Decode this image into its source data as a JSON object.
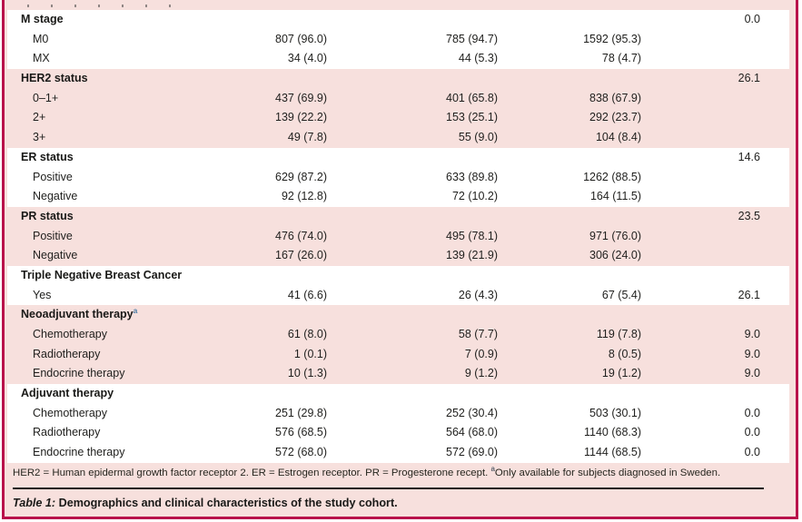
{
  "colors": {
    "frame_red": "#b9124b",
    "band_pink": "#f7e0dd",
    "band_white": "#ffffff",
    "rule_black": "#1a1a1a",
    "superscript_blue": "#4d7ea6"
  },
  "table": {
    "groups": [
      {
        "label": "M stage",
        "sup": "",
        "missing": "0.0",
        "rows": [
          {
            "label": "M0",
            "values": [
              "807 (96.0)",
              "785 (94.7)",
              "1592 (95.3)"
            ],
            "missing": ""
          },
          {
            "label": "MX",
            "values": [
              "34 (4.0)",
              "44 (5.3)",
              "78 (4.7)"
            ],
            "missing": ""
          }
        ]
      },
      {
        "label": "HER2 status",
        "sup": "",
        "missing": "26.1",
        "rows": [
          {
            "label": "0–1+",
            "values": [
              "437 (69.9)",
              "401 (65.8)",
              "838 (67.9)"
            ],
            "missing": ""
          },
          {
            "label": "2+",
            "values": [
              "139 (22.2)",
              "153 (25.1)",
              "292 (23.7)"
            ],
            "missing": ""
          },
          {
            "label": "3+",
            "values": [
              "49 (7.8)",
              "55 (9.0)",
              "104 (8.4)"
            ],
            "missing": ""
          }
        ]
      },
      {
        "label": "ER status",
        "sup": "",
        "missing": "14.6",
        "rows": [
          {
            "label": "Positive",
            "values": [
              "629 (87.2)",
              "633 (89.8)",
              "1262 (88.5)"
            ],
            "missing": ""
          },
          {
            "label": "Negative",
            "values": [
              "92 (12.8)",
              "72 (10.2)",
              "164 (11.5)"
            ],
            "missing": ""
          }
        ]
      },
      {
        "label": "PR status",
        "sup": "",
        "missing": "23.5",
        "rows": [
          {
            "label": "Positive",
            "values": [
              "476 (74.0)",
              "495 (78.1)",
              "971 (76.0)"
            ],
            "missing": ""
          },
          {
            "label": "Negative",
            "values": [
              "167 (26.0)",
              "139 (21.9)",
              "306 (24.0)"
            ],
            "missing": ""
          }
        ]
      },
      {
        "label": "Triple Negative Breast Cancer",
        "sup": "",
        "missing": "",
        "rows": [
          {
            "label": "Yes",
            "values": [
              "41 (6.6)",
              "26 (4.3)",
              "67 (5.4)"
            ],
            "missing": "26.1"
          }
        ]
      },
      {
        "label": "Neoadjuvant therapy",
        "sup": "a",
        "missing": "",
        "rows": [
          {
            "label": "Chemotherapy",
            "values": [
              "61 (8.0)",
              "58 (7.7)",
              "119 (7.8)"
            ],
            "missing": "9.0"
          },
          {
            "label": "Radiotherapy",
            "values": [
              "1 (0.1)",
              "7 (0.9)",
              "8 (0.5)"
            ],
            "missing": "9.0"
          },
          {
            "label": "Endocrine therapy",
            "values": [
              "10 (1.3)",
              "9 (1.2)",
              "19 (1.2)"
            ],
            "missing": "9.0"
          }
        ]
      },
      {
        "label": "Adjuvant therapy",
        "sup": "",
        "missing": "",
        "rows": [
          {
            "label": "Chemotherapy",
            "values": [
              "251 (29.8)",
              "252 (30.4)",
              "503 (30.1)"
            ],
            "missing": "0.0"
          },
          {
            "label": "Radiotherapy",
            "values": [
              "576 (68.5)",
              "564 (68.0)",
              "1140 (68.3)"
            ],
            "missing": "0.0"
          },
          {
            "label": "Endocrine therapy",
            "values": [
              "572 (68.0)",
              "572 (69.0)",
              "1144 (68.5)"
            ],
            "missing": "0.0"
          }
        ]
      }
    ],
    "footnote_pre": "HER2 = Human epidermal growth factor receptor 2. ER = Estrogen receptor. PR = Progesterone recept. ",
    "footnote_sup": "a",
    "footnote_post": "Only available for subjects diagnosed in Sweden.",
    "caption_label": "Table 1:",
    "caption_text": " Demographics and clinical characteristics of the study cohort."
  }
}
